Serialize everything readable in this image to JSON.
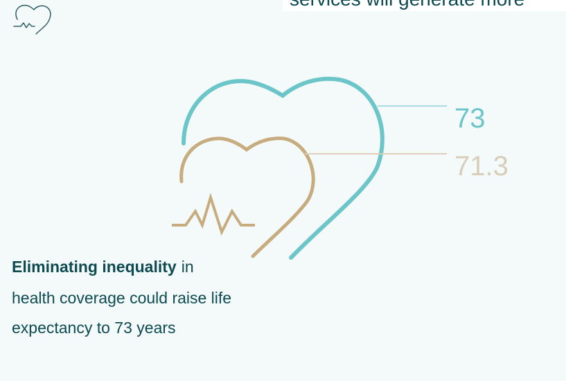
{
  "header_text": "services will generate more",
  "values": [
    {
      "label": 73
    },
    {
      "label": 71.3
    }
  ],
  "caption": {
    "bold": "Eliminating inequality",
    "lines": [
      "in",
      "health coverage could raise life",
      "expectancy to 73 years"
    ]
  }
}
